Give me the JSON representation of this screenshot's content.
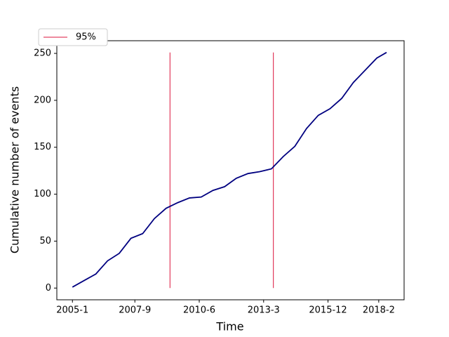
{
  "chart_data": {
    "type": "line",
    "xlabel": "Time",
    "ylabel": "Cumulative number of events",
    "x": [
      "2005-1",
      "2005-7",
      "2006-1",
      "2006-7",
      "2007-1",
      "2007-7",
      "2008-1",
      "2008-7",
      "2009-1",
      "2009-7",
      "2010-1",
      "2010-7",
      "2011-1",
      "2011-7",
      "2012-1",
      "2012-7",
      "2013-1",
      "2013-7",
      "2014-1",
      "2014-7",
      "2015-1",
      "2015-7",
      "2016-1",
      "2016-7",
      "2017-1",
      "2017-7",
      "2018-1",
      "2018-6"
    ],
    "series": [
      {
        "color": "#000080",
        "values": [
          1,
          8,
          15,
          29,
          37,
          53,
          58,
          74,
          85,
          91,
          96,
          97,
          104,
          108,
          117,
          122,
          124,
          127,
          140,
          151,
          170,
          184,
          191,
          202,
          219,
          232,
          245,
          251
        ]
      }
    ],
    "vlines": {
      "name": "95%",
      "color": "crimson",
      "x": [
        "2009-3",
        "2013-8"
      ],
      "ymin": 0,
      "ymax": 251
    },
    "xlim": [
      "2004-5",
      "2019-3"
    ],
    "xticks": [
      "2005-1",
      "2007-9",
      "2010-6",
      "2013-3",
      "2015-12",
      "2018-2"
    ],
    "ylim": [
      -12.5,
      263.5
    ],
    "yticks": [
      0,
      50,
      100,
      150,
      200,
      250
    ],
    "legend": "upper left"
  }
}
